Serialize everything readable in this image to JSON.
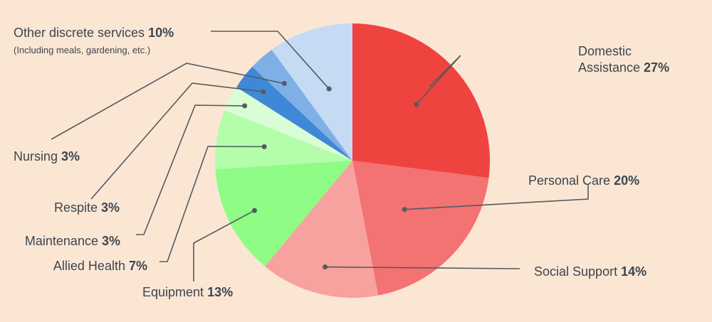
{
  "chart_data": {
    "type": "pie",
    "start_angle_deg": 0,
    "direction": "clockwise",
    "slices": [
      {
        "label": "Domestic Assistance",
        "label_lines": [
          "Domestic",
          "Assistance"
        ],
        "value": 27,
        "value_text": "27%",
        "color": "#ef4340"
      },
      {
        "label": "Personal Care",
        "label_lines": [
          "Personal Care"
        ],
        "value": 20,
        "value_text": "20%",
        "color": "#f37272"
      },
      {
        "label": "Social Support",
        "label_lines": [
          "Social Support"
        ],
        "value": 14,
        "value_text": "14%",
        "color": "#f7a29e"
      },
      {
        "label": "Equipment",
        "label_lines": [
          "Equipment"
        ],
        "value": 13,
        "value_text": "13%",
        "color": "#8efc85"
      },
      {
        "label": "Allied Health",
        "label_lines": [
          "Allied Health"
        ],
        "value": 7,
        "value_text": "7%",
        "color": "#b3fdab"
      },
      {
        "label": "Maintenance",
        "label_lines": [
          "Maintenance"
        ],
        "value": 3,
        "value_text": "3%",
        "color": "#d9fed5"
      },
      {
        "label": "Respite",
        "label_lines": [
          "Respite"
        ],
        "value": 3,
        "value_text": "3%",
        "color": "#3f88d8"
      },
      {
        "label": "Nursing",
        "label_lines": [
          "Nursing"
        ],
        "value": 3,
        "value_text": "3%",
        "color": "#7eb0e7"
      },
      {
        "label": "Other discrete services",
        "label_lines": [
          "Other discrete services"
        ],
        "value": 10,
        "value_text": "10%",
        "note": "(Including meals, gardening, etc.)",
        "color": "#c5daf3"
      }
    ]
  }
}
